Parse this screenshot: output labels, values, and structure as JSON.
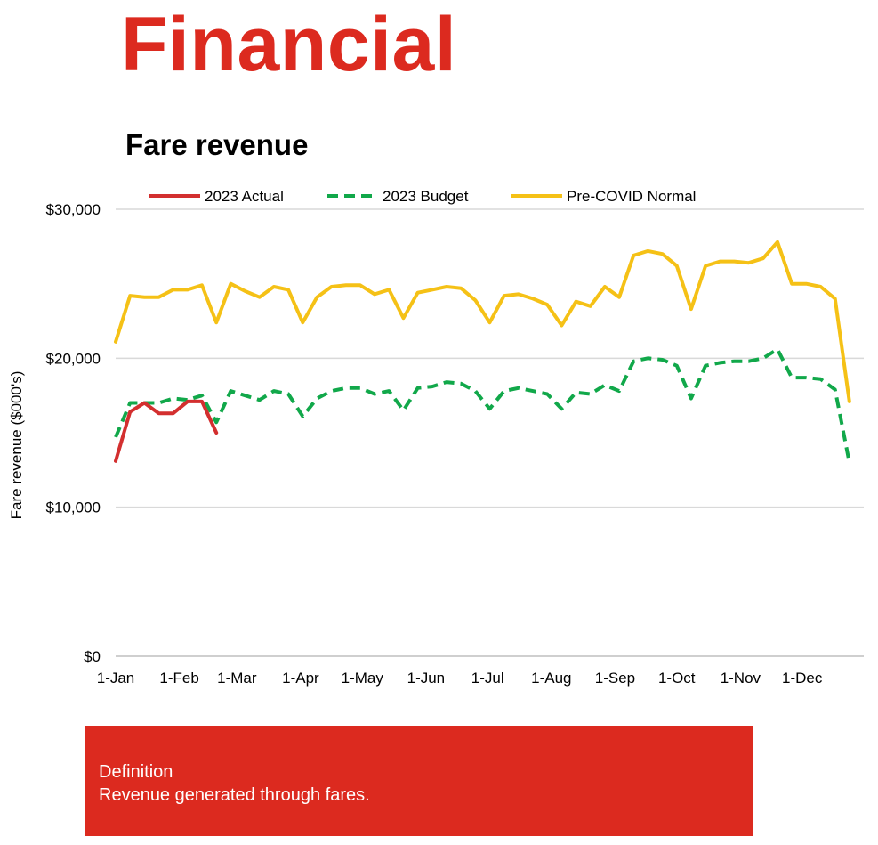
{
  "page": {
    "heading": "Financial",
    "definition_label": "Definition",
    "definition_text": "Revenue generated through fares."
  },
  "colors": {
    "brand_red": "#dc2a1f",
    "actual": "#d32f2f",
    "budget": "#11a84a",
    "precovid": "#f5c116",
    "grid": "#d9d9d9"
  },
  "chart_data": {
    "type": "line",
    "title": "Fare revenue",
    "xlabel": "",
    "ylabel": "Fare revenue ($000's)",
    "ylim": [
      0,
      30000
    ],
    "yticks": [
      0,
      10000,
      20000,
      30000
    ],
    "ytick_labels": [
      "$0",
      "$10,000",
      "$20,000",
      "$30,000"
    ],
    "xticks": [
      "1-Jan",
      "1-Feb",
      "1-Mar",
      "1-Apr",
      "1-May",
      "1-Jun",
      "1-Jul",
      "1-Aug",
      "1-Sep",
      "1-Oct",
      "1-Nov",
      "1-Dec"
    ],
    "xrange": [
      "2023-01-01",
      "2023-12-31"
    ],
    "grid": true,
    "legend_position": "top",
    "series": [
      {
        "name": "2023 Actual",
        "style": "solid",
        "color": "#d32f2f",
        "points": [
          [
            "2023-01-01",
            13100
          ],
          [
            "2023-01-08",
            16400
          ],
          [
            "2023-01-15",
            17000
          ],
          [
            "2023-01-22",
            16300
          ],
          [
            "2023-01-29",
            16300
          ],
          [
            "2023-02-05",
            17100
          ],
          [
            "2023-02-12",
            17100
          ],
          [
            "2023-02-19",
            15000
          ]
        ]
      },
      {
        "name": "2023 Budget",
        "style": "dashed",
        "color": "#11a84a",
        "points": [
          [
            "2023-01-01",
            14700
          ],
          [
            "2023-01-08",
            17000
          ],
          [
            "2023-01-15",
            17000
          ],
          [
            "2023-01-22",
            17000
          ],
          [
            "2023-01-29",
            17300
          ],
          [
            "2023-02-05",
            17200
          ],
          [
            "2023-02-12",
            17500
          ],
          [
            "2023-02-19",
            15700
          ],
          [
            "2023-02-26",
            17800
          ],
          [
            "2023-03-05",
            17500
          ],
          [
            "2023-03-12",
            17200
          ],
          [
            "2023-03-19",
            17800
          ],
          [
            "2023-03-26",
            17600
          ],
          [
            "2023-04-02",
            16100
          ],
          [
            "2023-04-09",
            17300
          ],
          [
            "2023-04-16",
            17800
          ],
          [
            "2023-04-23",
            18000
          ],
          [
            "2023-04-30",
            18000
          ],
          [
            "2023-05-07",
            17600
          ],
          [
            "2023-05-14",
            17800
          ],
          [
            "2023-05-21",
            16500
          ],
          [
            "2023-05-28",
            18000
          ],
          [
            "2023-06-04",
            18100
          ],
          [
            "2023-06-11",
            18400
          ],
          [
            "2023-06-18",
            18300
          ],
          [
            "2023-06-25",
            17800
          ],
          [
            "2023-07-02",
            16600
          ],
          [
            "2023-07-09",
            17800
          ],
          [
            "2023-07-16",
            18000
          ],
          [
            "2023-07-23",
            17800
          ],
          [
            "2023-07-30",
            17600
          ],
          [
            "2023-08-06",
            16600
          ],
          [
            "2023-08-13",
            17700
          ],
          [
            "2023-08-20",
            17600
          ],
          [
            "2023-08-27",
            18200
          ],
          [
            "2023-09-03",
            17800
          ],
          [
            "2023-09-10",
            19800
          ],
          [
            "2023-09-17",
            20000
          ],
          [
            "2023-09-24",
            19900
          ],
          [
            "2023-10-01",
            19500
          ],
          [
            "2023-10-08",
            17300
          ],
          [
            "2023-10-15",
            19500
          ],
          [
            "2023-10-22",
            19700
          ],
          [
            "2023-10-29",
            19800
          ],
          [
            "2023-11-05",
            19800
          ],
          [
            "2023-11-12",
            20000
          ],
          [
            "2023-11-19",
            20600
          ],
          [
            "2023-11-26",
            18700
          ],
          [
            "2023-12-03",
            18700
          ],
          [
            "2023-12-10",
            18600
          ],
          [
            "2023-12-17",
            17900
          ],
          [
            "2023-12-24",
            13000
          ]
        ]
      },
      {
        "name": "Pre-COVID Normal",
        "style": "solid",
        "color": "#f5c116",
        "points": [
          [
            "2023-01-01",
            21100
          ],
          [
            "2023-01-08",
            24200
          ],
          [
            "2023-01-15",
            24100
          ],
          [
            "2023-01-22",
            24100
          ],
          [
            "2023-01-29",
            24600
          ],
          [
            "2023-02-05",
            24600
          ],
          [
            "2023-02-12",
            24900
          ],
          [
            "2023-02-19",
            22400
          ],
          [
            "2023-02-26",
            25000
          ],
          [
            "2023-03-05",
            24500
          ],
          [
            "2023-03-12",
            24100
          ],
          [
            "2023-03-19",
            24800
          ],
          [
            "2023-03-26",
            24600
          ],
          [
            "2023-04-02",
            22400
          ],
          [
            "2023-04-09",
            24100
          ],
          [
            "2023-04-16",
            24800
          ],
          [
            "2023-04-23",
            24900
          ],
          [
            "2023-04-30",
            24900
          ],
          [
            "2023-05-07",
            24300
          ],
          [
            "2023-05-14",
            24600
          ],
          [
            "2023-05-21",
            22700
          ],
          [
            "2023-05-28",
            24400
          ],
          [
            "2023-06-04",
            24600
          ],
          [
            "2023-06-11",
            24800
          ],
          [
            "2023-06-18",
            24700
          ],
          [
            "2023-06-25",
            23900
          ],
          [
            "2023-07-02",
            22400
          ],
          [
            "2023-07-09",
            24200
          ],
          [
            "2023-07-16",
            24300
          ],
          [
            "2023-07-23",
            24000
          ],
          [
            "2023-07-30",
            23600
          ],
          [
            "2023-08-06",
            22200
          ],
          [
            "2023-08-13",
            23800
          ],
          [
            "2023-08-20",
            23500
          ],
          [
            "2023-08-27",
            24800
          ],
          [
            "2023-09-03",
            24100
          ],
          [
            "2023-09-10",
            26900
          ],
          [
            "2023-09-17",
            27200
          ],
          [
            "2023-09-24",
            27000
          ],
          [
            "2023-10-01",
            26200
          ],
          [
            "2023-10-08",
            23300
          ],
          [
            "2023-10-15",
            26200
          ],
          [
            "2023-10-22",
            26500
          ],
          [
            "2023-10-29",
            26500
          ],
          [
            "2023-11-05",
            26400
          ],
          [
            "2023-11-12",
            26700
          ],
          [
            "2023-11-19",
            27800
          ],
          [
            "2023-11-26",
            25000
          ],
          [
            "2023-12-03",
            25000
          ],
          [
            "2023-12-10",
            24800
          ],
          [
            "2023-12-17",
            24000
          ],
          [
            "2023-12-24",
            17100
          ]
        ]
      }
    ]
  }
}
